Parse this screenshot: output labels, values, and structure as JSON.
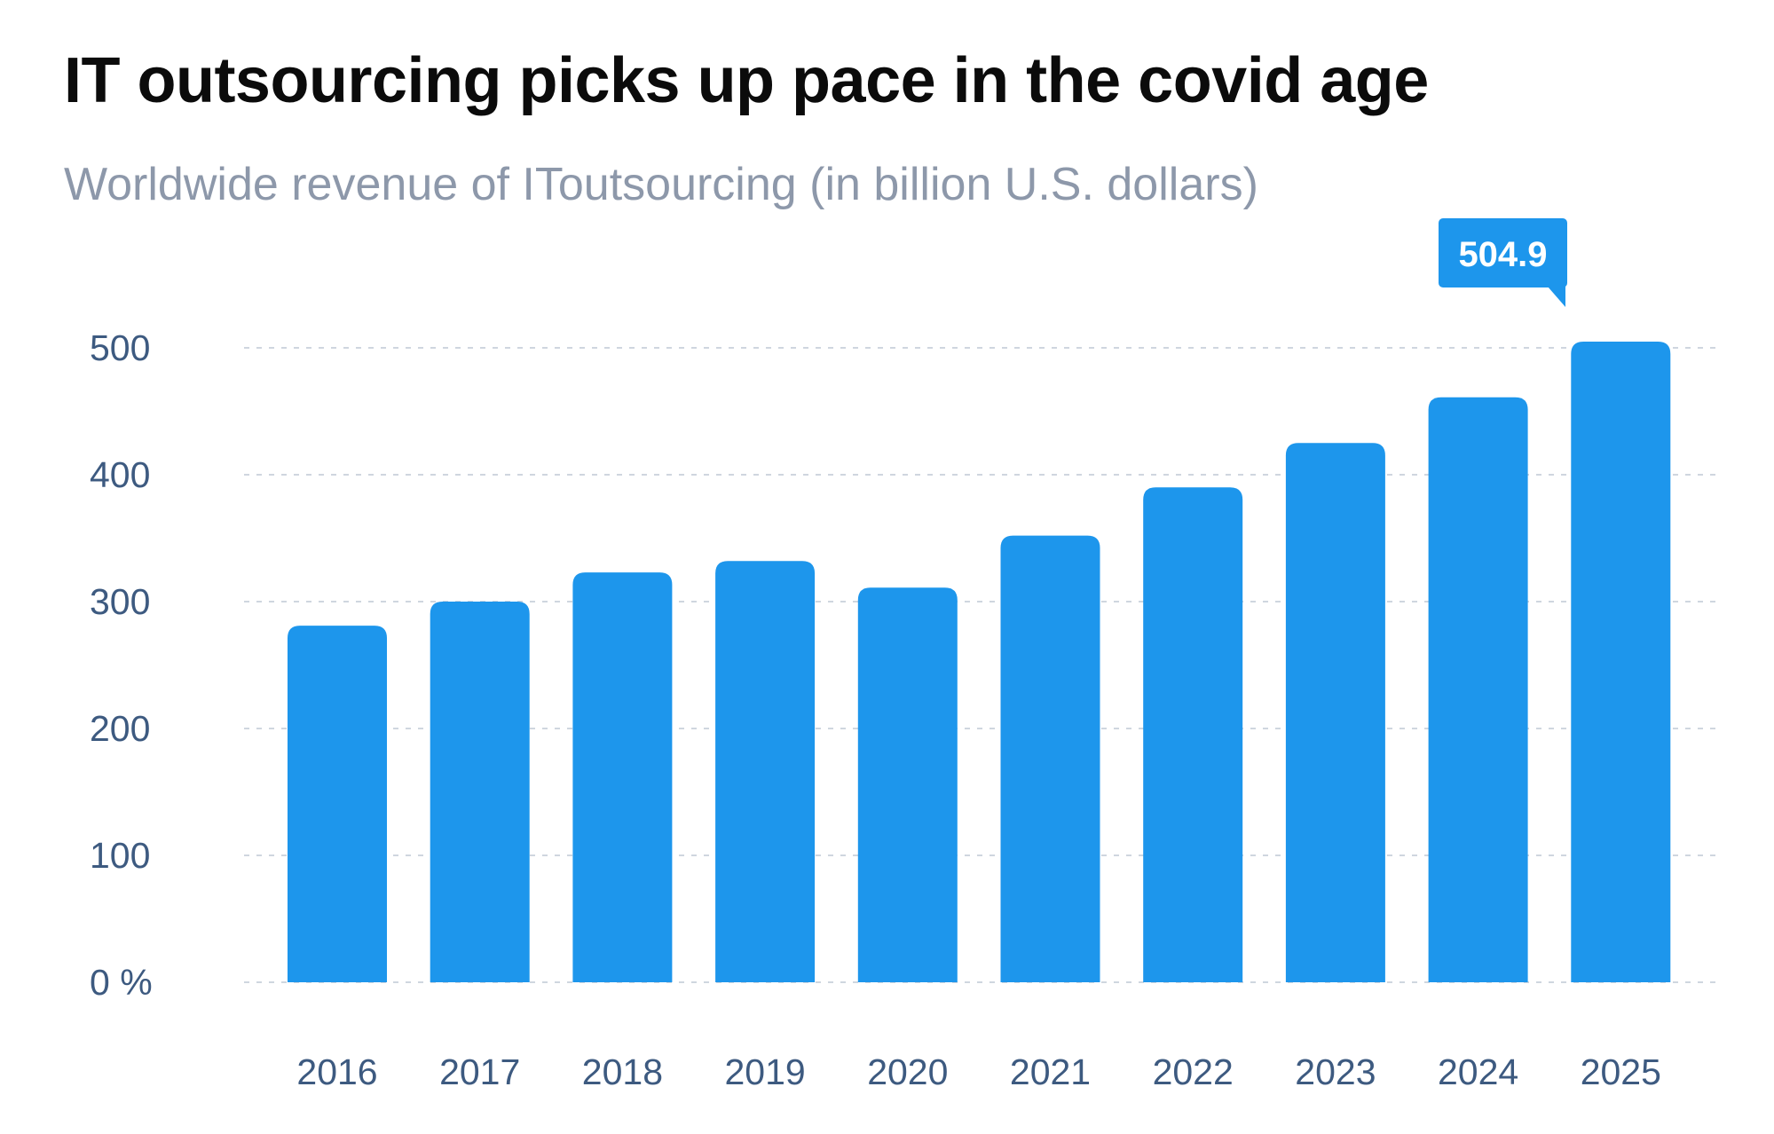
{
  "header": {
    "title": "IT outsourcing picks up pace in the covid age",
    "subtitle": "Worldwide revenue of IToutsourcing (in billion U.S. dollars)"
  },
  "colors": {
    "bar": "#1d96ec",
    "grid": "#cfd6df",
    "tick": "#3d5a80",
    "title": "#0b0b0b",
    "subtitle": "#8d98aa"
  },
  "chart_data": {
    "type": "bar",
    "title": "IT outsourcing picks up pace in the covid age",
    "subtitle": "Worldwide revenue of IToutsourcing (in billion U.S. dollars)",
    "categories": [
      "2016",
      "2017",
      "2018",
      "2019",
      "2020",
      "2021",
      "2022",
      "2023",
      "2024",
      "2025"
    ],
    "values": [
      281,
      300,
      323,
      332,
      311,
      352,
      390,
      425,
      461,
      504.9
    ],
    "ylim": [
      0,
      500
    ],
    "yticks": [
      0,
      100,
      200,
      300,
      400,
      500
    ],
    "ytick_labels": [
      "0 %",
      "100",
      "200",
      "300",
      "400",
      "500"
    ],
    "grid": true,
    "grid_style": "dashed",
    "highlight": {
      "category": "2025",
      "label": "504.9"
    }
  }
}
